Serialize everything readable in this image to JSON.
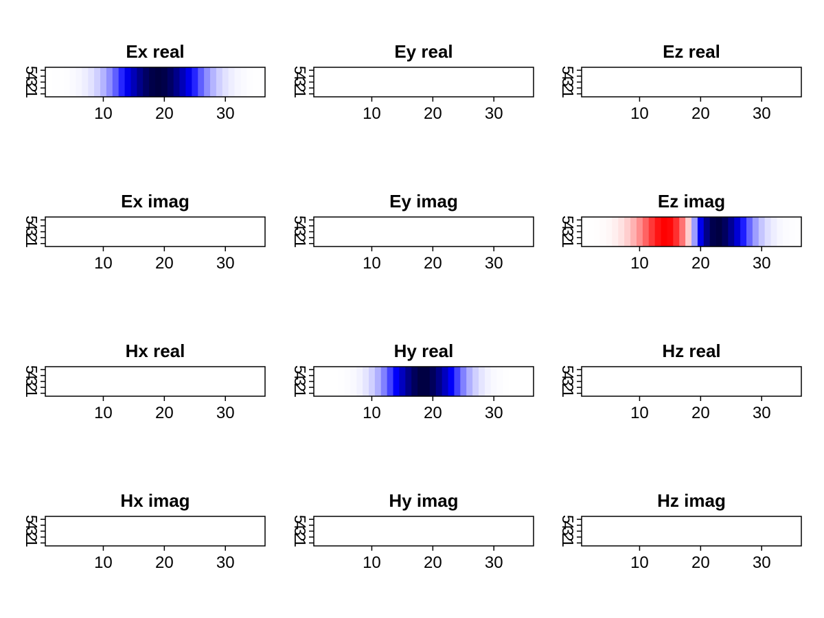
{
  "figure": {
    "grid": {
      "rows": 4,
      "cols": 3
    },
    "x_ticks": [
      10,
      20,
      30
    ],
    "y_ticks": [
      1,
      2,
      3,
      4,
      5
    ],
    "xlim": [
      0.5,
      36.5
    ],
    "ylim": [
      0.5,
      5.5
    ]
  },
  "chart_data": [
    {
      "type": "heatmap",
      "title": "Ex real",
      "profile": "gaussian",
      "peak": 19,
      "width": 6.5,
      "amplitude": -1.0
    },
    {
      "type": "heatmap",
      "title": "Ey real",
      "profile": "zero"
    },
    {
      "type": "heatmap",
      "title": "Ez real",
      "profile": "zero"
    },
    {
      "type": "heatmap",
      "title": "Ex imag",
      "profile": "zero"
    },
    {
      "type": "heatmap",
      "title": "Ey imag",
      "profile": "zero"
    },
    {
      "type": "heatmap",
      "title": "Ez imag",
      "profile": "dgauss",
      "peak": 18.5,
      "width": 6,
      "amplitude": 1.0
    },
    {
      "type": "heatmap",
      "title": "Hx real",
      "profile": "zero"
    },
    {
      "type": "heatmap",
      "title": "Hy real",
      "profile": "gaussian",
      "peak": 18.5,
      "width": 5.5,
      "amplitude": -1.0
    },
    {
      "type": "heatmap",
      "title": "Hz real",
      "profile": "zero"
    },
    {
      "type": "heatmap",
      "title": "Hx imag",
      "profile": "zero"
    },
    {
      "type": "heatmap",
      "title": "Hy imag",
      "profile": "zero"
    },
    {
      "type": "heatmap",
      "title": "Hz imag",
      "profile": "zero"
    }
  ],
  "colors": {
    "negative": "#000040",
    "mid_negative": "#0000ff",
    "zero": "#ffffff",
    "positive": "#ff0000"
  }
}
